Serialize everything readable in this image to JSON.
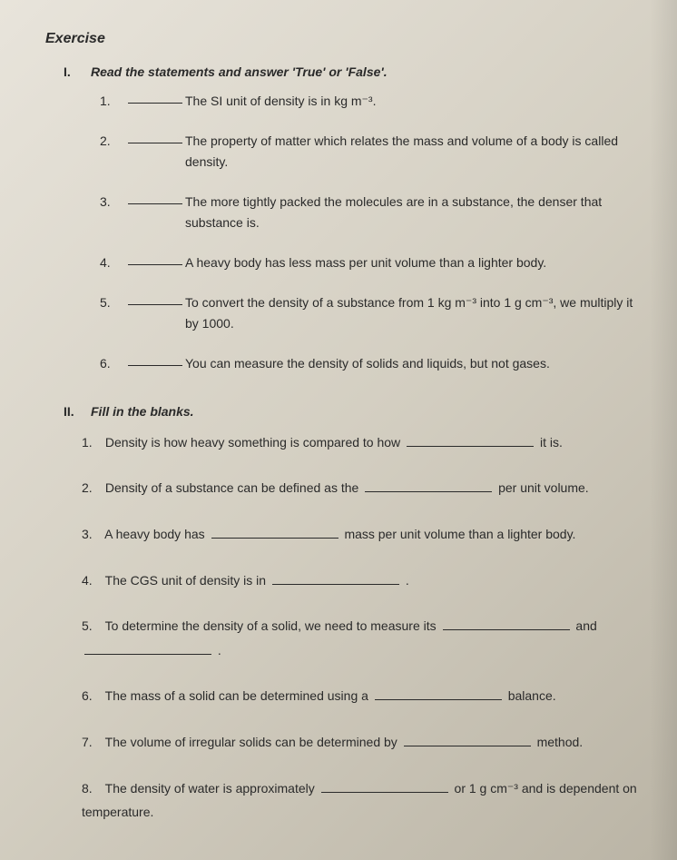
{
  "heading": "Exercise",
  "section1": {
    "num": "I.",
    "title": "Read the statements and answer 'True' or 'False'.",
    "items": [
      {
        "num": "1.",
        "text": "The SI unit of density is in kg m⁻³."
      },
      {
        "num": "2.",
        "text": "The property of matter which relates the mass and volume of a body is called density."
      },
      {
        "num": "3.",
        "text": "The more tightly packed the molecules are in a substance, the denser that substance is."
      },
      {
        "num": "4.",
        "text": "A heavy body has less mass per unit volume than a lighter body."
      },
      {
        "num": "5.",
        "text": "To convert the density of a substance from 1 kg m⁻³ into 1 g cm⁻³, we multiply it by 1000."
      },
      {
        "num": "6.",
        "text": "You can measure the density of solids and liquids, but not gases."
      }
    ]
  },
  "section2": {
    "num": "II.",
    "title": "Fill in the blanks.",
    "items": [
      {
        "num": "1.",
        "pre": "Density is how heavy something is compared to how",
        "post": "it is."
      },
      {
        "num": "2.",
        "pre": "Density of a substance can be defined as the",
        "post": "per unit volume."
      },
      {
        "num": "3.",
        "pre": "A heavy body has",
        "post": "mass per unit volume than a lighter body."
      },
      {
        "num": "4.",
        "pre": "The CGS unit of density is in",
        "post": "."
      },
      {
        "num": "5.",
        "pre": "To determine the density of a solid, we need to measure its",
        "mid": "and",
        "post": "."
      },
      {
        "num": "6.",
        "pre": "The mass of a solid can be determined using a",
        "post": "balance."
      },
      {
        "num": "7.",
        "pre": "The volume of irregular solids can be determined by",
        "post": "method."
      },
      {
        "num": "8.",
        "pre": "The density of water is approximately",
        "post": "or 1 g cm⁻³ and is dependent on temperature."
      }
    ]
  },
  "colors": {
    "text": "#2a2a2a",
    "bg_light": "#e8e4db",
    "bg_dark": "#bab4a5"
  },
  "typography": {
    "font_family": "Arial",
    "base_size": 14,
    "heading_size": 16
  }
}
